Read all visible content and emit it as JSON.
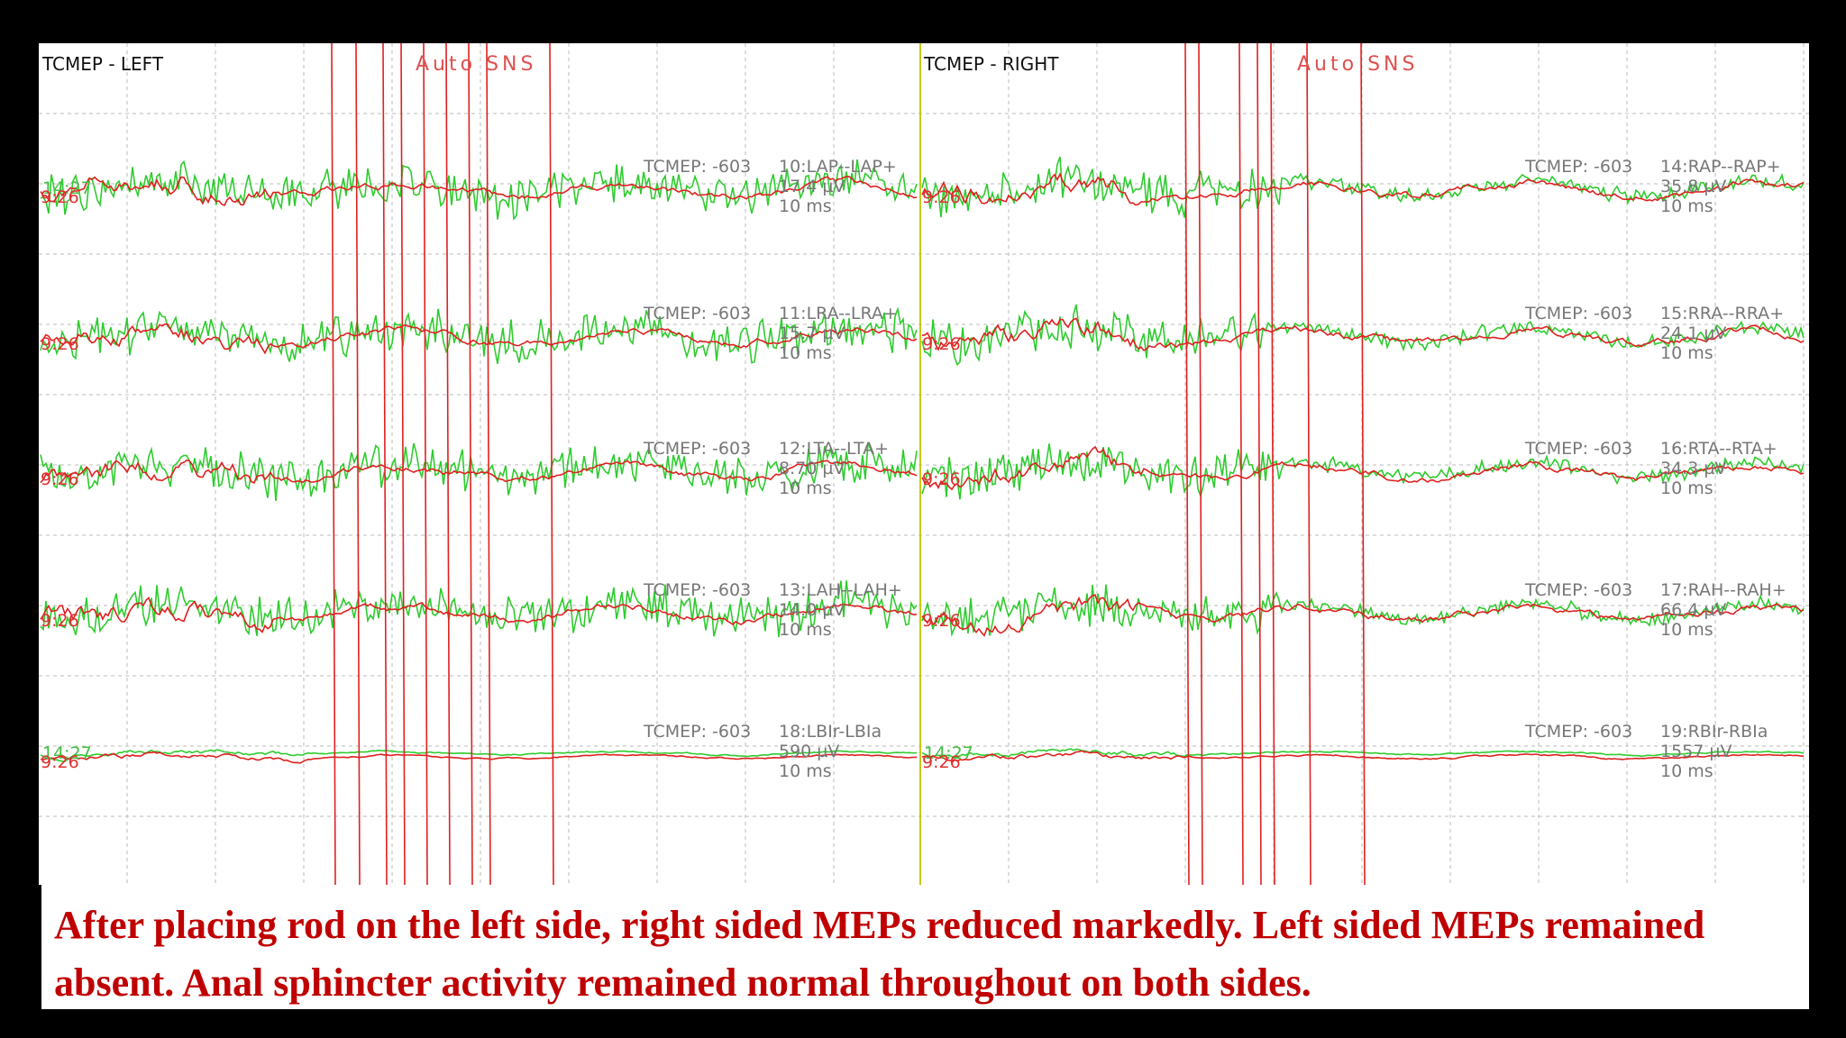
{
  "panels": [
    {
      "title": "TCMEP - LEFT",
      "mode": "Auto SNS",
      "channels": [
        {
          "test": "TCMEP: -603",
          "name": "10:LAP--LAP+",
          "amplitude": "17.4 µV",
          "timebase": "10 ms",
          "time": "9:26",
          "earlier_time": "14:27"
        },
        {
          "test": "TCMEP: -603",
          "name": "11:LRA--LRA+",
          "amplitude": "15.7 µV",
          "timebase": "10 ms",
          "time": "9:26"
        },
        {
          "test": "TCMEP: -603",
          "name": "12:LTA--LTA+",
          "amplitude": "8.70 µV",
          "timebase": "10 ms",
          "time": "9:26"
        },
        {
          "test": "TCMEP: -603",
          "name": "13:LAH--LAH+",
          "amplitude": "14.0 µV",
          "timebase": "10 ms",
          "time": "9:26"
        },
        {
          "test": "TCMEP: -603",
          "name": "18:LBIr-LBIa",
          "amplitude": "590 µV",
          "timebase": "10 ms",
          "time": "9:26",
          "earlier_time": "14:27"
        }
      ]
    },
    {
      "title": "TCMEP - RIGHT",
      "mode": "Auto SNS",
      "channels": [
        {
          "test": "TCMEP: -603",
          "name": "14:RAP--RAP+",
          "amplitude": "35.8 µV",
          "timebase": "10 ms",
          "time": "9:26"
        },
        {
          "test": "TCMEP: -603",
          "name": "15:RRA--RRA+",
          "amplitude": "24.1 µV",
          "timebase": "10 ms",
          "time": "9:26"
        },
        {
          "test": "TCMEP: -603",
          "name": "16:RTA--RTA+",
          "amplitude": "34.3 µV",
          "timebase": "10 ms",
          "time": "9:26"
        },
        {
          "test": "TCMEP: -603",
          "name": "17:RAH--RAH+",
          "amplitude": "66.4 µV",
          "timebase": "10 ms",
          "time": "9:26"
        },
        {
          "test": "TCMEP: -603",
          "name": "19:RBIr-RBIa",
          "amplitude": "1557 µV",
          "timebase": "10 ms",
          "time": "9:26",
          "earlier_time": "14:27"
        }
      ]
    }
  ],
  "caption": "After placing rod on the left side, right sided MEPs reduced markedly. Left sided MEPs remained absent. Anal sphincter activity remained normal throughout on both sides."
}
